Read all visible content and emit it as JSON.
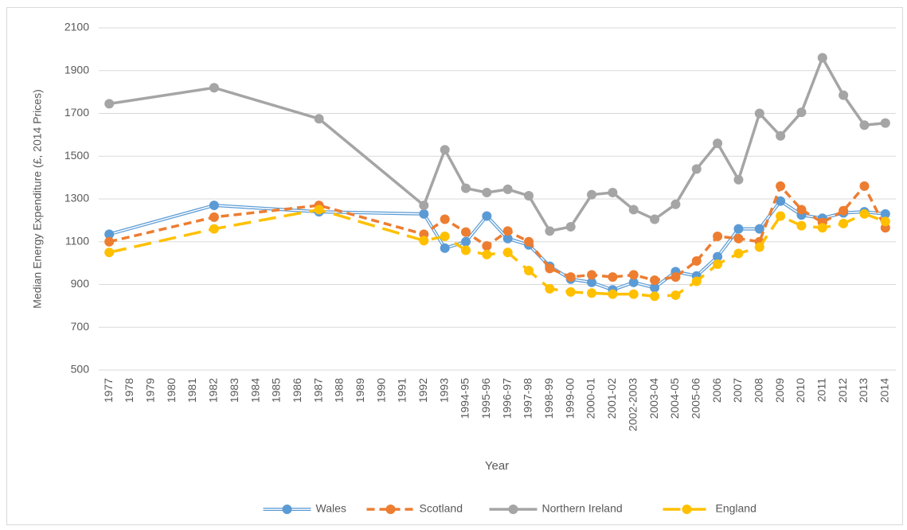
{
  "chart_data": {
    "type": "line",
    "y_label": "Median Energy Expenditure (£, 2014 Prices)",
    "x_label": "Year",
    "categories": [
      "1977",
      "1978",
      "1979",
      "1980",
      "1981",
      "1982",
      "1983",
      "1984",
      "1985",
      "1986",
      "1987",
      "1988",
      "1989",
      "1990",
      "1991",
      "1992",
      "1993",
      "1994-95",
      "1995-96",
      "1996-97",
      "1997-98",
      "1998-99",
      "1999-00",
      "2000-01",
      "2001-02",
      "2002-2003",
      "2003-04",
      "2004-05",
      "2005-06",
      "2006",
      "2007",
      "2008",
      "2009",
      "2010",
      "2011",
      "2012",
      "2013",
      "2014"
    ],
    "ylim": [
      500,
      2100
    ],
    "yticks": [
      500,
      700,
      900,
      1100,
      1300,
      1500,
      1700,
      1900,
      2100
    ],
    "grid": true,
    "span_gaps": true,
    "legend": "bottom",
    "series": [
      {
        "name": "Wales",
        "color": "#5b9bd5",
        "line_style": "double",
        "values": [
          1135,
          null,
          null,
          null,
          null,
          1270,
          null,
          null,
          null,
          null,
          1240,
          null,
          null,
          null,
          null,
          1230,
          1070,
          1100,
          1220,
          1115,
          1085,
          985,
          925,
          910,
          875,
          910,
          885,
          960,
          940,
          1030,
          1160,
          1160,
          1290,
          1225,
          1210,
          1235,
          1240,
          1230
        ]
      },
      {
        "name": "Scotland",
        "color": "#ed7d31",
        "line_style": "dashed",
        "values": [
          1100,
          null,
          null,
          null,
          null,
          1215,
          null,
          null,
          null,
          null,
          1270,
          null,
          null,
          null,
          null,
          1135,
          1205,
          1145,
          1080,
          1150,
          1100,
          975,
          935,
          945,
          935,
          945,
          920,
          935,
          1010,
          1125,
          1115,
          1100,
          1360,
          1250,
          1190,
          1245,
          1360,
          1165
        ]
      },
      {
        "name": "Northern Ireland",
        "color": "#a5a5a5",
        "line_style": "solid",
        "values": [
          1745,
          null,
          null,
          null,
          null,
          1820,
          null,
          null,
          null,
          null,
          1675,
          null,
          null,
          null,
          null,
          1270,
          1530,
          1350,
          1330,
          1345,
          1315,
          1150,
          1170,
          1320,
          1330,
          1250,
          1205,
          1275,
          1440,
          1560,
          1390,
          1700,
          1595,
          1705,
          1960,
          1785,
          1645,
          1655
        ]
      },
      {
        "name": "England",
        "color": "#ffc000",
        "line_style": "long-dash",
        "values": [
          1050,
          null,
          null,
          null,
          null,
          1160,
          null,
          null,
          null,
          null,
          1250,
          null,
          null,
          null,
          null,
          1105,
          1125,
          1060,
          1040,
          1050,
          965,
          880,
          865,
          860,
          855,
          855,
          845,
          850,
          915,
          995,
          1045,
          1075,
          1220,
          1175,
          1165,
          1185,
          1230,
          1195
        ]
      }
    ]
  }
}
